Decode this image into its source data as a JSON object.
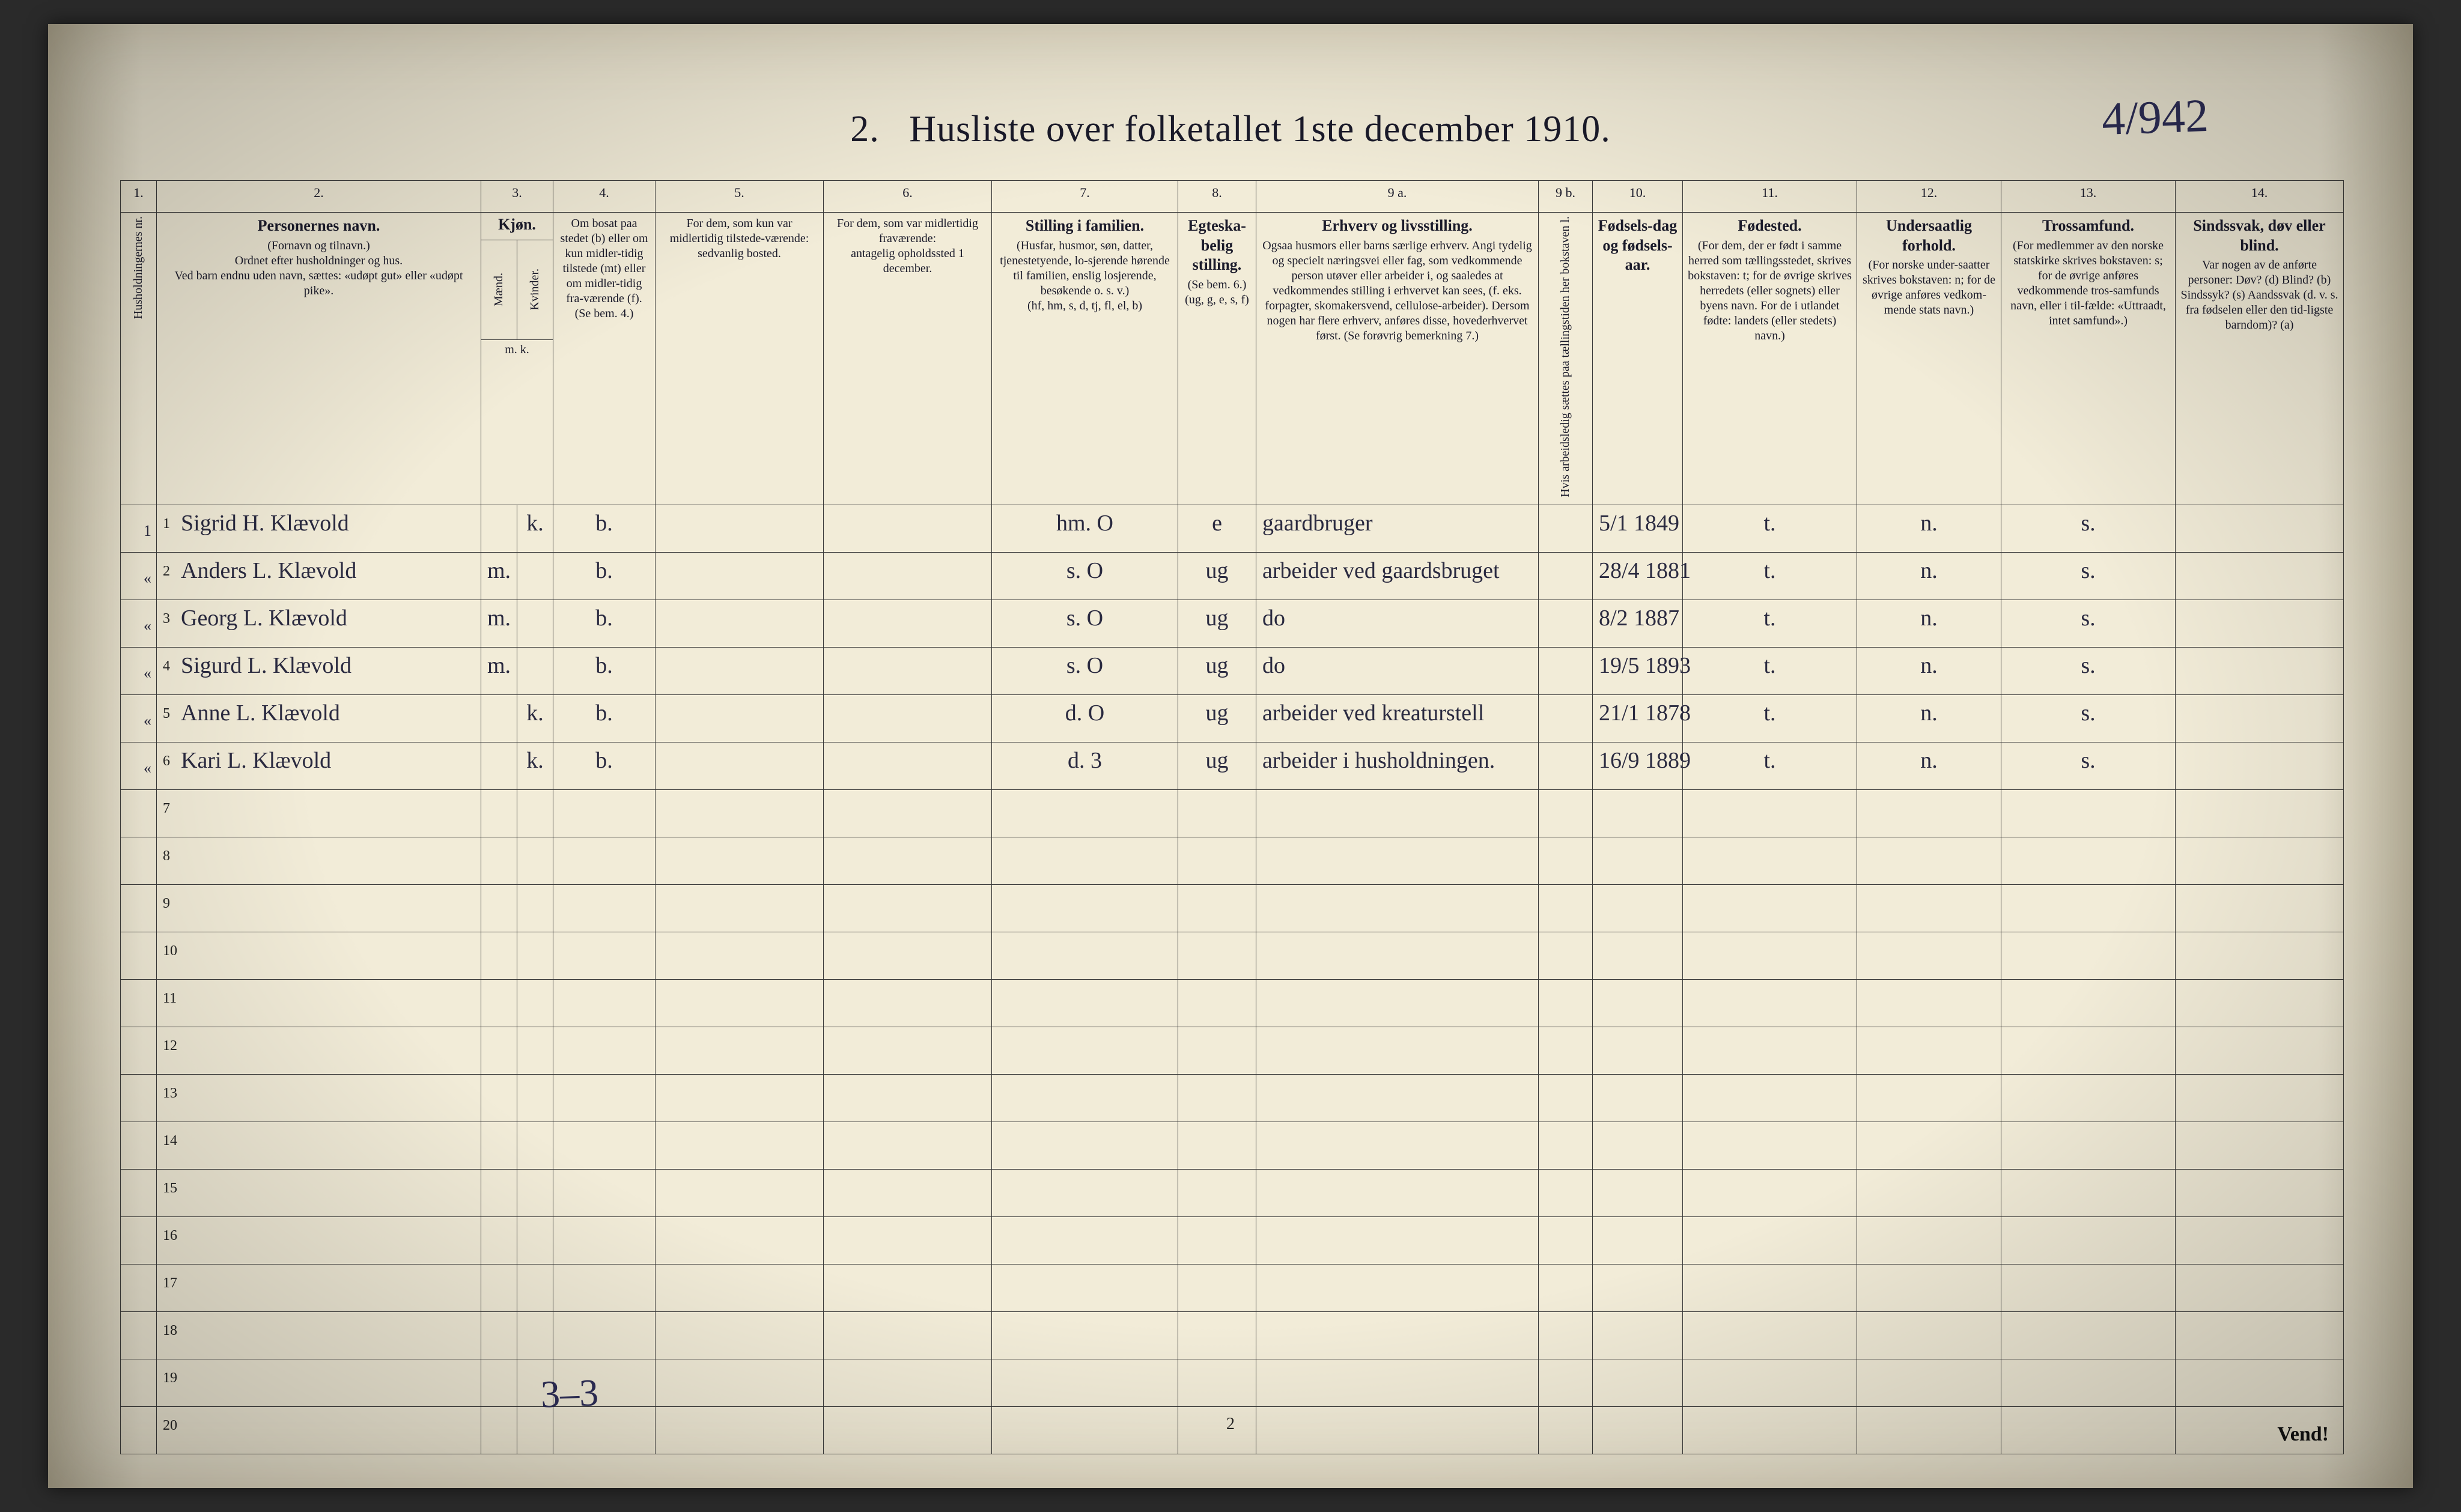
{
  "title": {
    "num": "2.",
    "text": "Husliste over folketallet 1ste december 1910."
  },
  "top_annotation": "4/942",
  "bottom_annotation": "3–3",
  "page_number": "2",
  "vend": "Vend!",
  "colnums": [
    "1.",
    "2.",
    "3.",
    "4.",
    "5.",
    "6.",
    "7.",
    "8.",
    "9 a.",
    "9 b.",
    "10.",
    "11.",
    "12.",
    "13.",
    "14."
  ],
  "headers": {
    "c1": "Husholdningernes nr.",
    "c2_main": "Personernes navn.",
    "c2_sub1": "(Fornavn og tilnavn.)",
    "c2_sub2": "Ordnet efter husholdninger og hus.",
    "c2_sub3": "Ved barn endnu uden navn, sættes: «udøpt gut» eller «udøpt pike».",
    "c3_main": "Kjøn.",
    "c3_m": "Mænd.",
    "c3_k": "Kvinder.",
    "c3_mk": "m.   k.",
    "c4_main": "Om bosat paa stedet (b) eller om kun midler-tidig tilstede (mt) eller om midler-tidig fra-værende (f).",
    "c4_sub": "(Se bem. 4.)",
    "c5_main": "For dem, som kun var midlertidig tilstede-værende:",
    "c5_sub": "sedvanlig bosted.",
    "c6_main": "For dem, som var midlertidig fraværende:",
    "c6_sub": "antagelig opholdssted 1 december.",
    "c7_main": "Stilling i familien.",
    "c7_sub1": "(Husfar, husmor, søn, datter, tjenestetyende, lo-sjerende hørende til familien, enslig losjerende, besøkende o. s. v.)",
    "c7_sub2": "(hf, hm, s, d, tj, fl, el, b)",
    "c8_main": "Egteska-belig stilling.",
    "c8_sub": "(Se bem. 6.) (ug, g, e, s, f)",
    "c9a_main": "Erhverv og livsstilling.",
    "c9a_sub": "Ogsaa husmors eller barns særlige erhverv. Angi tydelig og specielt næringsvei eller fag, som vedkommende person utøver eller arbeider i, og saaledes at vedkommendes stilling i erhvervet kan sees, (f. eks. forpagter, skomakersvend, cellulose-arbeider). Dersom nogen har flere erhverv, anføres disse, hovederhvervet først. (Se forøvrig bemerkning 7.)",
    "c9b": "Hvis arbeidsledig sættes paa tællingstiden her bokstaven l.",
    "c10_main": "Fødsels-dag og fødsels-aar.",
    "c11_main": "Fødested.",
    "c11_sub": "(For dem, der er født i samme herred som tællingsstedet, skrives bokstaven: t; for de øvrige skrives herredets (eller sognets) eller byens navn. For de i utlandet fødte: landets (eller stedets) navn.)",
    "c12_main": "Undersaatlig forhold.",
    "c12_sub": "(For norske under-saatter skrives bokstaven: n; for de øvrige anføres vedkom-mende stats navn.)",
    "c13_main": "Trossamfund.",
    "c13_sub": "(For medlemmer av den norske statskirke skrives bokstaven: s; for de øvrige anføres vedkommende tros-samfunds navn, eller i til-fælde: «Uttraadt, intet samfund».)",
    "c14_main": "Sindssvak, døv eller blind.",
    "c14_sub": "Var nogen av de anførte personer: Døv? (d)  Blind? (b)  Sindssyk? (s)  Aandssvak (d. v. s. fra fødselen eller den tid-ligste barndom)? (a)"
  },
  "rows": [
    {
      "hh": "1",
      "pn": "1",
      "name": "Sigrid H. Klævold",
      "mk": "k.",
      "b": "b.",
      "c5": "",
      "c6": "",
      "fam": "hm. O",
      "eg": "e",
      "erh": "gaardbruger",
      "dob": "5/1 1849",
      "fst": "t.",
      "und": "n.",
      "tro": "s.",
      "c14": ""
    },
    {
      "hh": "«",
      "pn": "2",
      "name": "Anders L. Klævold",
      "mk": "m.",
      "b": "b.",
      "c5": "",
      "c6": "",
      "fam": "s. O",
      "eg": "ug",
      "erh": "arbeider ved gaardsbruget",
      "dob": "28/4 1881",
      "fst": "t.",
      "und": "n.",
      "tro": "s.",
      "c14": ""
    },
    {
      "hh": "«",
      "pn": "3",
      "name": "Georg L. Klævold",
      "mk": "m.",
      "b": "b.",
      "c5": "",
      "c6": "",
      "fam": "s. O",
      "eg": "ug",
      "erh": "do",
      "dob": "8/2 1887",
      "fst": "t.",
      "und": "n.",
      "tro": "s.",
      "c14": ""
    },
    {
      "hh": "«",
      "pn": "4",
      "name": "Sigurd L. Klævold",
      "mk": "m.",
      "b": "b.",
      "c5": "",
      "c6": "",
      "fam": "s. O",
      "eg": "ug",
      "erh": "do",
      "dob": "19/5 1893",
      "fst": "t.",
      "und": "n.",
      "tro": "s.",
      "c14": ""
    },
    {
      "hh": "«",
      "pn": "5",
      "name": "Anne L. Klævold",
      "mk": "k.",
      "b": "b.",
      "c5": "",
      "c6": "",
      "fam": "d. O",
      "eg": "ug",
      "erh": "arbeider ved kreaturstell",
      "dob": "21/1 1878",
      "fst": "t.",
      "und": "n.",
      "tro": "s.",
      "c14": ""
    },
    {
      "hh": "«",
      "pn": "6",
      "name": "Kari L. Klævold",
      "mk": "k.",
      "b": "b.",
      "c5": "",
      "c6": "",
      "fam": "d. 3",
      "eg": "ug",
      "erh": "arbeider i husholdningen.",
      "dob": "16/9 1889",
      "fst": "t.",
      "und": "n.",
      "tro": "s.",
      "c14": ""
    }
  ],
  "empty_rows": [
    "7",
    "8",
    "9",
    "10",
    "11",
    "12",
    "13",
    "14",
    "15",
    "16",
    "17",
    "18",
    "19",
    "20"
  ]
}
